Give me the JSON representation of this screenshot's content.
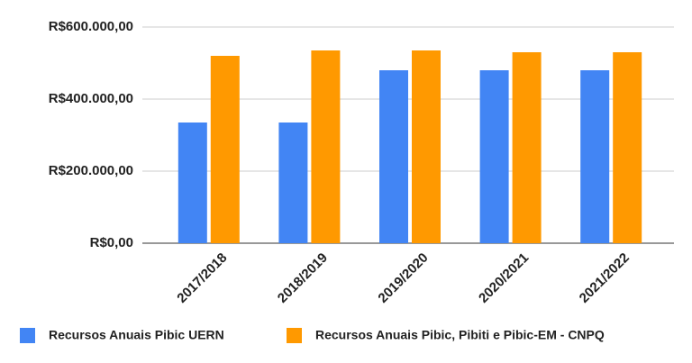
{
  "chart_data": {
    "type": "bar",
    "categories": [
      "2017/2018",
      "2018/2019",
      "2019/2020",
      "2020/2021",
      "2021/2022"
    ],
    "series": [
      {
        "name": "Recursos Anuais Pibic UERN",
        "color": "#4285f4",
        "values": [
          335000,
          335000,
          480000,
          480000,
          480000
        ]
      },
      {
        "name": "Recursos Anuais Pibic, Pibiti e Pibic-EM - CNPQ",
        "color": "#ff9900",
        "values": [
          520000,
          535000,
          535000,
          530000,
          530000
        ]
      }
    ],
    "ylim": [
      0,
      600000
    ],
    "yticks": [
      {
        "value": 0,
        "label": "R$0,00"
      },
      {
        "value": 200000,
        "label": "R$200.000,00"
      },
      {
        "value": 400000,
        "label": "R$400.000,00"
      },
      {
        "value": 600000,
        "label": "R$600.000,00"
      }
    ],
    "grid": true
  }
}
